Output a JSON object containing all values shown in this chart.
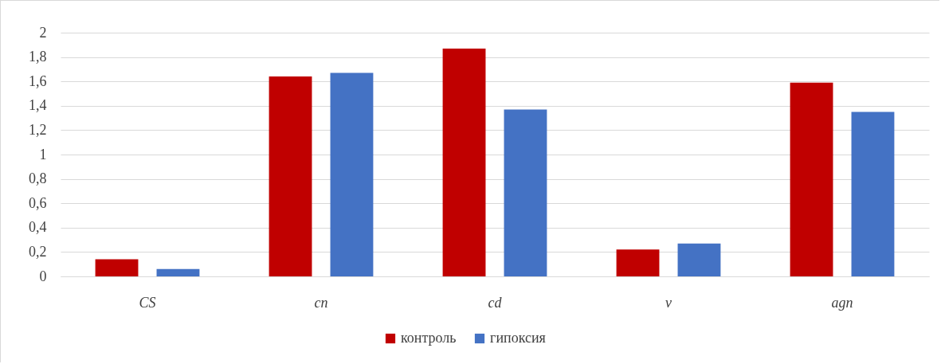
{
  "chart_data": {
    "type": "bar",
    "categories": [
      "CS",
      "cn",
      "cd",
      "v",
      "agn"
    ],
    "series": [
      {
        "name": "контроль",
        "color": "#c00000",
        "values": [
          0.14,
          1.64,
          1.87,
          0.22,
          1.59
        ]
      },
      {
        "name": "гипоксия",
        "color": "#4472c4",
        "values": [
          0.06,
          1.67,
          1.37,
          0.27,
          1.35
        ]
      }
    ],
    "ylim": [
      0,
      2
    ],
    "yticks": [
      0,
      {
        "value": 0.2,
        "label": "0,2"
      },
      {
        "value": 0.4,
        "label": "0,4"
      },
      {
        "value": 0.6,
        "label": "0,6"
      },
      {
        "value": 0.8,
        "label": "0,8"
      },
      1,
      {
        "value": 1.2,
        "label": "1,2"
      },
      {
        "value": 1.4,
        "label": "1,4"
      },
      {
        "value": 1.6,
        "label": "1,6"
      },
      {
        "value": 1.8,
        "label": "1,8"
      },
      2
    ],
    "grid": "y",
    "legend": "bottom"
  }
}
